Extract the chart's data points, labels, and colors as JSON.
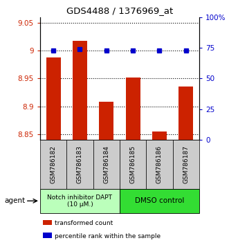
{
  "title": "GDS4488 / 1376969_at",
  "samples": [
    "GSM786182",
    "GSM786183",
    "GSM786184",
    "GSM786185",
    "GSM786186",
    "GSM786187"
  ],
  "bar_values": [
    8.988,
    9.018,
    8.908,
    8.952,
    8.855,
    8.935
  ],
  "percentile_values": [
    73,
    74,
    73,
    73,
    73,
    73
  ],
  "ylim_left": [
    8.84,
    9.06
  ],
  "ylim_right": [
    0,
    100
  ],
  "yticks_left": [
    8.85,
    8.9,
    8.95,
    9.0,
    9.05
  ],
  "yticks_right": [
    0,
    25,
    50,
    75,
    100
  ],
  "ytick_labels_left": [
    "8.85",
    "8.9",
    "8.95",
    "9",
    "9.05"
  ],
  "ytick_labels_right": [
    "0",
    "25",
    "50",
    "75",
    "100%"
  ],
  "bar_color": "#cc2200",
  "dot_color": "#0000cc",
  "bar_bottom": 8.84,
  "group1_label": "Notch inhibitor DAPT\n(10 μM.)",
  "group2_label": "DMSO control",
  "group1_color": "#bbffbb",
  "group2_color": "#33dd33",
  "agent_label": "agent",
  "legend1": "transformed count",
  "legend2": "percentile rank within the sample",
  "background_color": "#ffffff",
  "plot_bg_color": "#ffffff",
  "xlabel_box_color": "#cccccc",
  "n_group1": 3,
  "n_group2": 3
}
